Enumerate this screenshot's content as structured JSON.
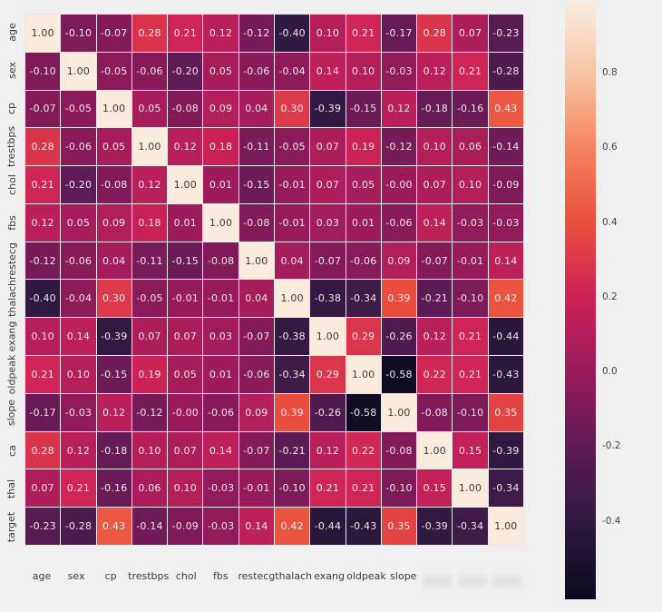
{
  "figure": {
    "kind": "seaborn-correlation-heatmap",
    "background": "#f0f0f0"
  },
  "colors": {
    "gridline": "#e9e7ed",
    "annot_light": "#f0e9e8",
    "annot_dark": "#3a3a3a",
    "axis_label": "#3b3b3b",
    "cbar_tick": "#444444"
  },
  "chart_data": {
    "type": "heatmap",
    "title": "",
    "xlabel": "",
    "ylabel": "",
    "row_labels": [
      "age",
      "sex",
      "cp",
      "trestbps",
      "chol",
      "fbs",
      "restecg",
      "thalach",
      "exang",
      "oldpeak",
      "slope",
      "ca",
      "thal",
      "target"
    ],
    "col_labels_visible": [
      "age",
      "sex",
      "cp",
      "trestbps",
      "chol",
      "fbs",
      "restecg",
      "thalach",
      "exang",
      "oldpeak",
      "slope"
    ],
    "col_labels_obscured_slots": 3,
    "matrix_display": [
      [
        "1.00",
        "-0.10",
        "-0.07",
        "0.28",
        "0.21",
        "0.12",
        "-0.12",
        "-0.40",
        "0.10",
        "0.21",
        "-0.17",
        "0.28",
        "0.07",
        "-0.23"
      ],
      [
        "-0.10",
        "1.00",
        "-0.05",
        "-0.06",
        "-0.20",
        "0.05",
        "-0.06",
        "-0.04",
        "0.14",
        "0.10",
        "-0.03",
        "0.12",
        "0.21",
        "-0.28"
      ],
      [
        "-0.07",
        "-0.05",
        "1.00",
        "0.05",
        "-0.08",
        "0.09",
        "0.04",
        "0.30",
        "-0.39",
        "-0.15",
        "0.12",
        "-0.18",
        "-0.16",
        "0.43"
      ],
      [
        "0.28",
        "-0.06",
        "0.05",
        "1.00",
        "0.12",
        "0.18",
        "-0.11",
        "-0.05",
        "0.07",
        "0.19",
        "-0.12",
        "0.10",
        "0.06",
        "-0.14"
      ],
      [
        "0.21",
        "-0.20",
        "-0.08",
        "0.12",
        "1.00",
        "0.01",
        "-0.15",
        "-0.01",
        "0.07",
        "0.05",
        "-0.00",
        "0.07",
        "0.10",
        "-0.09"
      ],
      [
        "0.12",
        "0.05",
        "0.09",
        "0.18",
        "0.01",
        "1.00",
        "-0.08",
        "-0.01",
        "0.03",
        "0.01",
        "-0.06",
        "0.14",
        "-0.03",
        "-0.03"
      ],
      [
        "-0.12",
        "-0.06",
        "0.04",
        "-0.11",
        "-0.15",
        "-0.08",
        "1.00",
        "0.04",
        "-0.07",
        "-0.06",
        "0.09",
        "-0.07",
        "-0.01",
        "0.14"
      ],
      [
        "-0.40",
        "-0.04",
        "0.30",
        "-0.05",
        "-0.01",
        "-0.01",
        "0.04",
        "1.00",
        "-0.38",
        "-0.34",
        "0.39",
        "-0.21",
        "-0.10",
        "0.42"
      ],
      [
        "0.10",
        "0.14",
        "-0.39",
        "0.07",
        "0.07",
        "0.03",
        "-0.07",
        "-0.38",
        "1.00",
        "0.29",
        "-0.26",
        "0.12",
        "0.21",
        "-0.44"
      ],
      [
        "0.21",
        "0.10",
        "-0.15",
        "0.19",
        "0.05",
        "0.01",
        "-0.06",
        "-0.34",
        "0.29",
        "1.00",
        "-0.58",
        "0.22",
        "0.21",
        "-0.43"
      ],
      [
        "-0.17",
        "-0.03",
        "0.12",
        "-0.12",
        "-0.00",
        "-0.06",
        "0.09",
        "0.39",
        "-0.26",
        "-0.58",
        "1.00",
        "-0.08",
        "-0.10",
        "0.35"
      ],
      [
        "0.28",
        "0.12",
        "-0.18",
        "0.10",
        "0.07",
        "0.14",
        "-0.07",
        "-0.21",
        "0.12",
        "0.22",
        "-0.08",
        "1.00",
        "0.15",
        "-0.39"
      ],
      [
        "0.07",
        "0.21",
        "-0.16",
        "0.06",
        "0.10",
        "-0.03",
        "-0.01",
        "-0.10",
        "0.21",
        "0.21",
        "-0.10",
        "0.15",
        "1.00",
        "-0.34"
      ],
      [
        "-0.23",
        "-0.28",
        "0.43",
        "-0.14",
        "-0.09",
        "-0.03",
        "0.14",
        "0.42",
        "-0.44",
        "-0.43",
        "0.35",
        "-0.39",
        "-0.34",
        "1.00"
      ]
    ],
    "colorbar": {
      "tick_labels": [
        "0.8",
        "0.6",
        "0.4",
        "0.2",
        "0.0",
        "-0.2",
        "-0.4"
      ],
      "tick_values": [
        0.8,
        0.6,
        0.4,
        0.2,
        0.0,
        -0.2,
        -0.4
      ],
      "vmax": 0.985,
      "vmin": -0.61,
      "position": "right"
    },
    "colormap_name": "rocket",
    "colormap_stops": [
      {
        "v": -0.61,
        "rgb": [
          9,
          10,
          30
        ]
      },
      {
        "v": -0.4,
        "rgb": [
          48,
          25,
          64
        ]
      },
      {
        "v": -0.2,
        "rgb": [
          94,
          27,
          85
        ]
      },
      {
        "v": 0.0,
        "rgb": [
          154,
          26,
          91
        ]
      },
      {
        "v": 0.2,
        "rgb": [
          206,
          34,
          87
        ]
      },
      {
        "v": 0.4,
        "rgb": [
          233,
          79,
          60
        ]
      },
      {
        "v": 0.6,
        "rgb": [
          245,
          132,
          94
        ]
      },
      {
        "v": 0.8,
        "rgb": [
          247,
          197,
          163
        ]
      },
      {
        "v": 1.0,
        "rgb": [
          250,
          235,
          221
        ]
      }
    ]
  }
}
